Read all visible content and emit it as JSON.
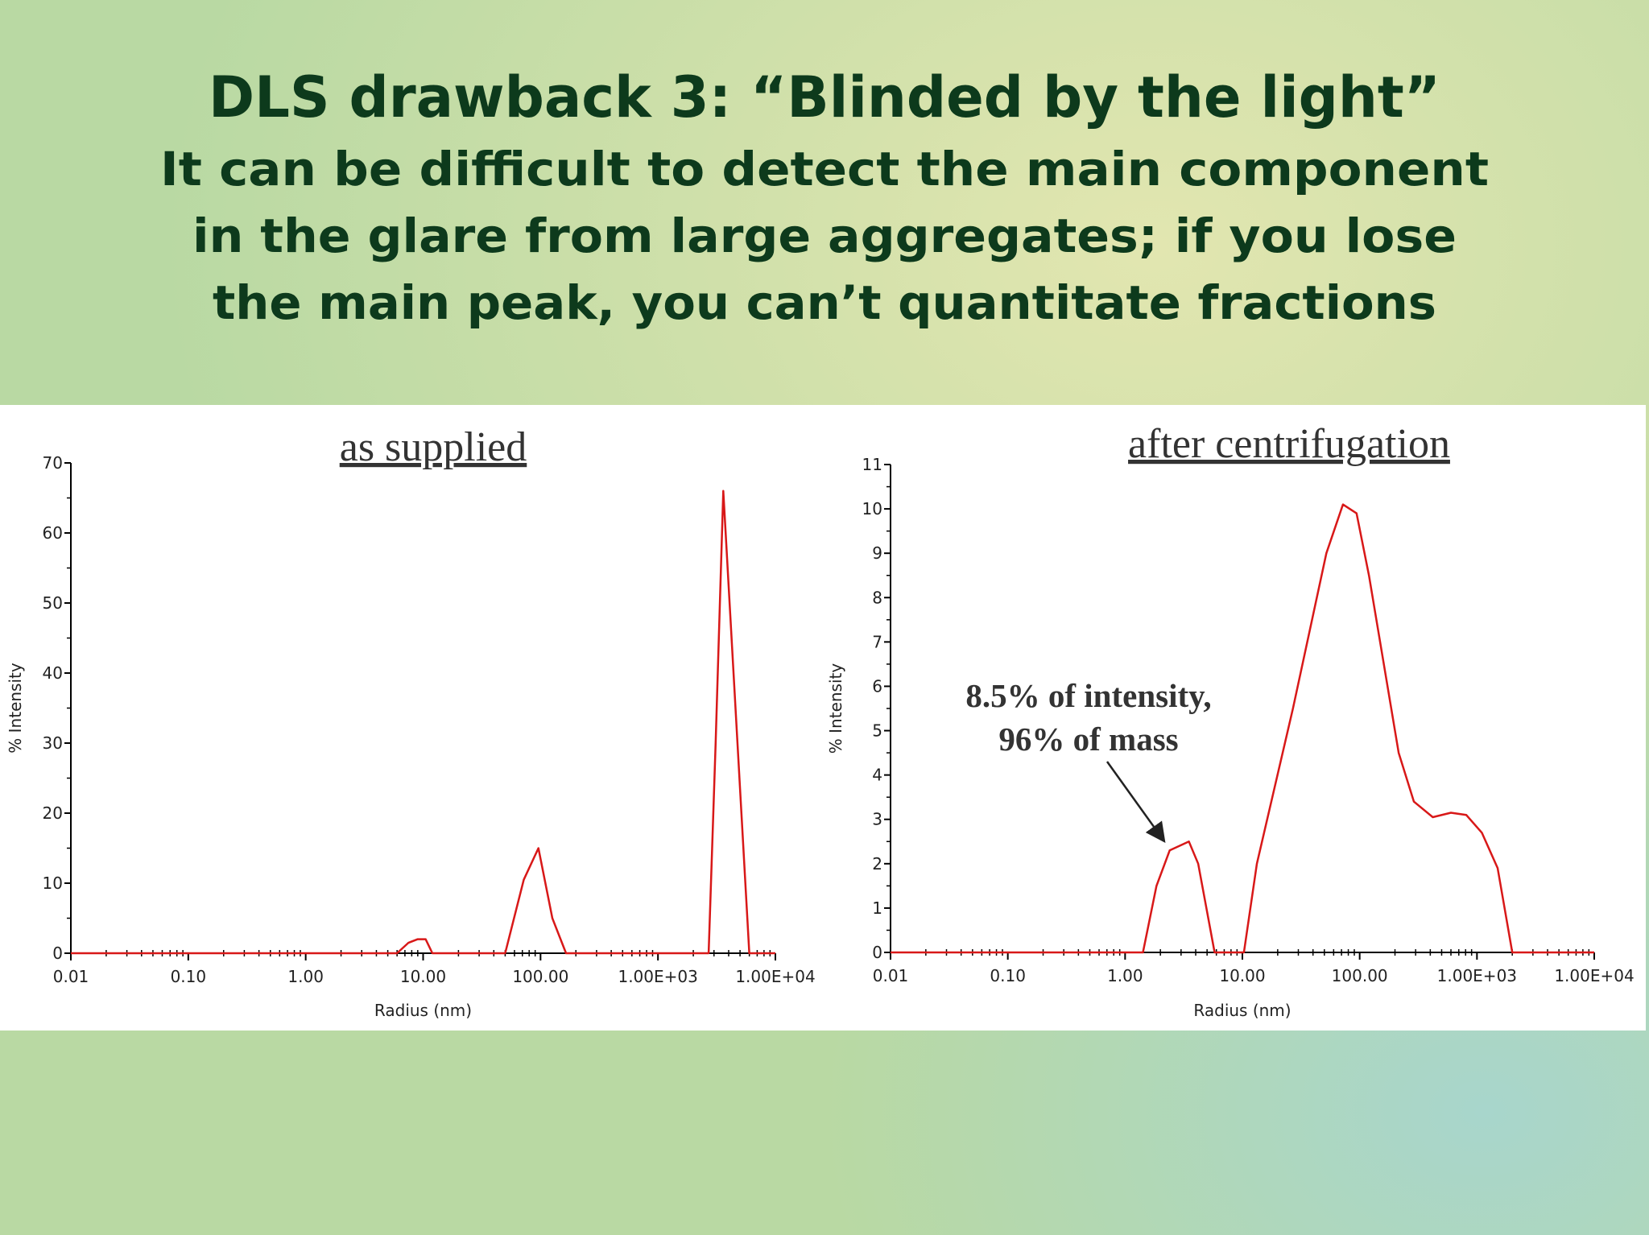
{
  "title": "DLS drawback 3: “Blinded by the light”",
  "subtitle": [
    "It can be difficult to detect the main component",
    "in the glare from large aggregates; if you lose",
    "the main peak, you can’t quantitate fractions"
  ],
  "chart_data": [
    {
      "type": "line",
      "title": "as supplied",
      "xlabel": "Radius (nm)",
      "ylabel": "% Intensity",
      "xscale": "log",
      "xlim": [
        0.01,
        10000
      ],
      "xticks": [
        0.01,
        {
          "value": 0.1,
          "label": "0.10"
        },
        {
          "value": 1,
          "label": "1.00"
        },
        {
          "value": 10,
          "label": "10.00"
        },
        {
          "value": 100,
          "label": "100.00"
        },
        {
          "value": 1000,
          "label": "1.00E+03"
        },
        {
          "value": 10000,
          "label": "1.00E+04"
        }
      ],
      "ylim": [
        0,
        70
      ],
      "yticks": [
        0,
        10,
        20,
        30,
        40,
        50,
        60,
        70
      ],
      "color": "#d81818",
      "x": [
        0.01,
        6,
        7.5,
        9,
        10.5,
        12,
        50,
        72,
        96,
        126,
        165,
        2700,
        3100,
        3600,
        6000,
        10000
      ],
      "values": [
        0,
        0,
        1.5,
        2,
        2,
        0,
        0,
        10.5,
        15,
        5,
        0,
        0,
        30,
        66,
        0,
        0
      ]
    },
    {
      "type": "line",
      "title": "after centrifugation",
      "xlabel": "Radius (nm)",
      "ylabel": "% Intensity",
      "xscale": "log",
      "xlim": [
        0.01,
        10000
      ],
      "xticks": [
        0.01,
        {
          "value": 0.1,
          "label": "0.10"
        },
        {
          "value": 1,
          "label": "1.00"
        },
        {
          "value": 10,
          "label": "10.00"
        },
        {
          "value": 100,
          "label": "100.00"
        },
        {
          "value": 1000,
          "label": "1.00E+03"
        },
        {
          "value": 10000,
          "label": "1.00E+04"
        }
      ],
      "ylim": [
        0,
        11
      ],
      "yticks": [
        0,
        1,
        2,
        3,
        4,
        5,
        6,
        7,
        8,
        9,
        10,
        11
      ],
      "color": "#d81818",
      "annotation": [
        "8.5% of intensity,",
        "96% of mass"
      ],
      "x": [
        0.01,
        1.42,
        1.85,
        2.4,
        3.5,
        4.2,
        5.8,
        10.3,
        13.3,
        27,
        52,
        72,
        94,
        120,
        215,
        290,
        420,
        600,
        810,
        1100,
        1500,
        2000,
        10000
      ],
      "values": [
        0,
        0,
        1.5,
        2.3,
        2.5,
        2,
        0,
        0,
        2,
        5.5,
        9,
        10.1,
        9.9,
        8.5,
        4.5,
        3.4,
        3.05,
        3.15,
        3.1,
        2.7,
        1.9,
        0,
        0
      ]
    }
  ]
}
